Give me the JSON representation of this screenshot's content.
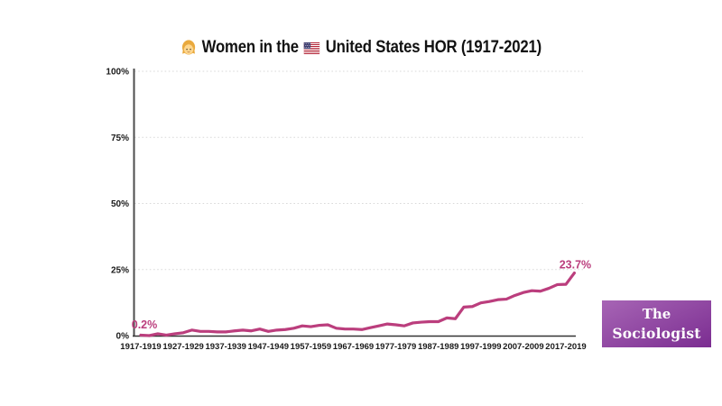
{
  "title": {
    "girl_emoji": "girl-face",
    "flag_emoji": "us-flag",
    "text_before_flag": "Women in the",
    "text_after_flag": "United States HOR (1917-2021)"
  },
  "branding": {
    "line1": "The",
    "line2": "Sociologist",
    "bg_top_color": "#a765b5",
    "bg_bottom_color": "#7b2d91",
    "text_color": "#ffffff"
  },
  "chart_data": {
    "type": "line",
    "title": "Women in the United States HOR (1917-2021)",
    "xlabel": "",
    "ylabel": "",
    "ylim": [
      0,
      100
    ],
    "grid": "dotted horizontal gridlines at 25/50/75/100",
    "legend": "none",
    "line_color": "#bb3e7d",
    "grid_color": "#d9d9d9",
    "axis_color": "#4d4d4d",
    "y_ticks": [
      0,
      25,
      50,
      75,
      100
    ],
    "y_tick_labels": [
      "0%",
      "25%",
      "50%",
      "75%",
      "100%"
    ],
    "x_tick_labels": [
      "1917-1919",
      "1927-1929",
      "1937-1939",
      "1947-1949",
      "1957-1959",
      "1967-1969",
      "1977-1979",
      "1987-1989",
      "1997-1999",
      "2007-2009",
      "2017-2019"
    ],
    "x": [
      "1917-1919",
      "1919-1921",
      "1921-1923",
      "1923-1925",
      "1925-1927",
      "1927-1929",
      "1929-1931",
      "1931-1933",
      "1933-1935",
      "1935-1937",
      "1937-1939",
      "1939-1941",
      "1941-1943",
      "1943-1945",
      "1945-1947",
      "1947-1949",
      "1949-1951",
      "1951-1953",
      "1953-1955",
      "1955-1957",
      "1957-1959",
      "1959-1961",
      "1961-1963",
      "1963-1965",
      "1965-1967",
      "1967-1969",
      "1969-1971",
      "1971-1973",
      "1973-1975",
      "1975-1977",
      "1977-1979",
      "1979-1981",
      "1981-1983",
      "1983-1985",
      "1985-1987",
      "1987-1989",
      "1989-1991",
      "1991-1993",
      "1993-1995",
      "1995-1997",
      "1997-1999",
      "1999-2001",
      "2001-2003",
      "2003-2005",
      "2005-2007",
      "2007-2009",
      "2009-2011",
      "2011-2013",
      "2013-2015",
      "2015-2017",
      "2017-2019",
      "2019-2021"
    ],
    "values": [
      0.2,
      0.0,
      0.7,
      0.2,
      0.7,
      1.1,
      2.1,
      1.6,
      1.6,
      1.4,
      1.4,
      1.8,
      2.1,
      1.8,
      2.5,
      1.6,
      2.1,
      2.3,
      2.8,
      3.7,
      3.4,
      3.9,
      4.1,
      2.8,
      2.5,
      2.5,
      2.3,
      3.0,
      3.7,
      4.4,
      4.1,
      3.7,
      4.8,
      5.1,
      5.3,
      5.3,
      6.7,
      6.4,
      10.8,
      11.0,
      12.4,
      12.9,
      13.6,
      13.8,
      15.2,
      16.3,
      17.0,
      16.8,
      17.9,
      19.3,
      19.4,
      23.7
    ],
    "annotations": [
      {
        "text": "0.2%",
        "point_index": 0
      },
      {
        "text": "23.7%",
        "point_index": 51
      }
    ]
  }
}
